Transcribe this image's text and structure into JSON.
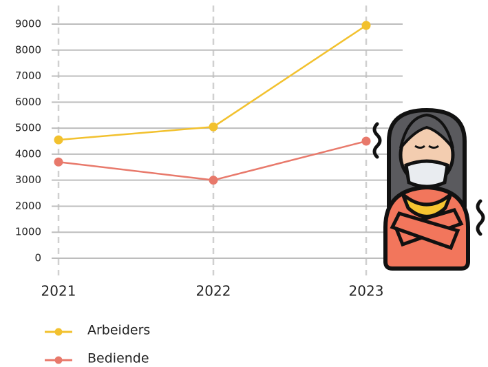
{
  "chart_data": {
    "type": "line",
    "categories": [
      "2021",
      "2022",
      "2023"
    ],
    "series": [
      {
        "name": "Arbeiders",
        "color": "#f2c12e",
        "values": [
          4550,
          5050,
          8950
        ]
      },
      {
        "name": "Bediende",
        "color": "#e8796b",
        "values": [
          3700,
          3000,
          4500
        ]
      }
    ],
    "ylim": [
      0,
      9000
    ],
    "yticks": [
      0,
      1000,
      2000,
      3000,
      4000,
      5000,
      6000,
      7000,
      8000,
      9000
    ],
    "grid": true
  }
}
